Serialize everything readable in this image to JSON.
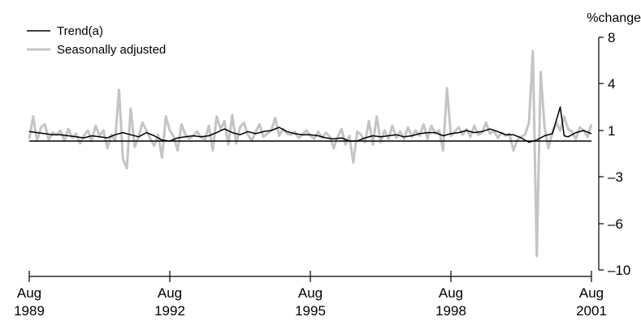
{
  "chart_data": {
    "type": "line",
    "title": "",
    "xlabel": "",
    "ylabel": "%change",
    "x_range": [
      "1989-08",
      "2001-08"
    ],
    "y_ticks": [
      8,
      4,
      1,
      -3,
      -6,
      -10
    ],
    "y_tick_labels": [
      "8",
      "4",
      "1",
      "–3",
      "–6",
      "–10"
    ],
    "y_axis_position": "right",
    "x_ticks": [
      {
        "x": "1989-08",
        "month": "Aug",
        "year": "1989"
      },
      {
        "x": "1992-08",
        "month": "Aug",
        "year": "1992"
      },
      {
        "x": "1995-08",
        "month": "Aug",
        "year": "1995"
      },
      {
        "x": "1998-08",
        "month": "Aug",
        "year": "1998"
      },
      {
        "x": "2001-08",
        "month": "Aug",
        "year": "2001"
      }
    ],
    "reference_line": 0,
    "grid": false,
    "legend_position": "top-left",
    "series": [
      {
        "name": "Trend(a)",
        "color": "#000000",
        "points": [
          [
            "1989-08",
            0.9
          ],
          [
            "1989-10",
            0.8
          ],
          [
            "1989-12",
            0.7
          ],
          [
            "1990-02",
            0.6
          ],
          [
            "1990-04",
            0.6
          ],
          [
            "1990-06",
            0.5
          ],
          [
            "1990-08",
            0.4
          ],
          [
            "1990-10",
            0.3
          ],
          [
            "1990-12",
            0.5
          ],
          [
            "1991-02",
            0.4
          ],
          [
            "1991-04",
            0.3
          ],
          [
            "1991-06",
            0.6
          ],
          [
            "1991-08",
            0.8
          ],
          [
            "1991-10",
            0.6
          ],
          [
            "1991-12",
            0.4
          ],
          [
            "1992-02",
            0.8
          ],
          [
            "1992-04",
            0.5
          ],
          [
            "1992-06",
            0.1
          ],
          [
            "1992-08",
            0.0
          ],
          [
            "1992-10",
            0.3
          ],
          [
            "1992-12",
            0.4
          ],
          [
            "1993-02",
            0.5
          ],
          [
            "1993-04",
            0.4
          ],
          [
            "1993-06",
            0.5
          ],
          [
            "1993-08",
            0.8
          ],
          [
            "1993-10",
            1.1
          ],
          [
            "1993-12",
            0.8
          ],
          [
            "1994-02",
            0.6
          ],
          [
            "1994-04",
            0.9
          ],
          [
            "1994-06",
            0.7
          ],
          [
            "1994-08",
            0.9
          ],
          [
            "1994-10",
            1.0
          ],
          [
            "1994-12",
            1.2
          ],
          [
            "1995-02",
            0.9
          ],
          [
            "1995-04",
            0.7
          ],
          [
            "1995-06",
            0.6
          ],
          [
            "1995-08",
            0.6
          ],
          [
            "1995-10",
            0.5
          ],
          [
            "1995-12",
            0.3
          ],
          [
            "1996-02",
            0.2
          ],
          [
            "1996-04",
            0.3
          ],
          [
            "1996-06",
            0.0
          ],
          [
            "1996-08",
            0.0
          ],
          [
            "1996-10",
            0.3
          ],
          [
            "1996-12",
            0.5
          ],
          [
            "1997-02",
            0.4
          ],
          [
            "1997-04",
            0.5
          ],
          [
            "1997-06",
            0.6
          ],
          [
            "1997-08",
            0.4
          ],
          [
            "1997-10",
            0.5
          ],
          [
            "1997-12",
            0.7
          ],
          [
            "1998-02",
            0.8
          ],
          [
            "1998-04",
            0.8
          ],
          [
            "1998-06",
            0.5
          ],
          [
            "1998-08",
            0.7
          ],
          [
            "1998-10",
            0.8
          ],
          [
            "1998-12",
            1.0
          ],
          [
            "1999-02",
            0.8
          ],
          [
            "1999-04",
            0.9
          ],
          [
            "1999-06",
            1.1
          ],
          [
            "1999-08",
            0.9
          ],
          [
            "1999-10",
            0.6
          ],
          [
            "1999-12",
            0.6
          ],
          [
            "2000-02",
            0.3
          ],
          [
            "2000-04",
            -0.1
          ],
          [
            "2000-06",
            0.1
          ],
          [
            "2000-08",
            0.5
          ],
          [
            "2000-10",
            0.7
          ],
          [
            "2000-12",
            2.5
          ],
          [
            "2001-01",
            0.5
          ],
          [
            "2001-02",
            0.4
          ],
          [
            "2001-04",
            0.8
          ],
          [
            "2001-06",
            1.0
          ],
          [
            "2001-08",
            0.7
          ]
        ]
      },
      {
        "name": "Seasonally adjusted",
        "color": "#c4c4c4",
        "points": [
          [
            "1989-08",
            0.2
          ],
          [
            "1989-09",
            1.9
          ],
          [
            "1989-10",
            0.0
          ],
          [
            "1989-11",
            1.2
          ],
          [
            "1989-12",
            1.4
          ],
          [
            "1990-01",
            0.1
          ],
          [
            "1990-02",
            0.8
          ],
          [
            "1990-03",
            0.6
          ],
          [
            "1990-04",
            1.0
          ],
          [
            "1990-05",
            0.0
          ],
          [
            "1990-06",
            1.1
          ],
          [
            "1990-07",
            0.3
          ],
          [
            "1990-08",
            0.7
          ],
          [
            "1990-09",
            -0.2
          ],
          [
            "1990-10",
            0.5
          ],
          [
            "1990-11",
            1.0
          ],
          [
            "1990-12",
            0.0
          ],
          [
            "1991-01",
            1.3
          ],
          [
            "1991-02",
            0.5
          ],
          [
            "1991-03",
            1.0
          ],
          [
            "1991-04",
            -0.6
          ],
          [
            "1991-05",
            0.6
          ],
          [
            "1991-06",
            0.0
          ],
          [
            "1991-07",
            3.6
          ],
          [
            "1991-08",
            -1.5
          ],
          [
            "1991-09",
            -2.3
          ],
          [
            "1991-10",
            2.4
          ],
          [
            "1991-11",
            -0.5
          ],
          [
            "1991-12",
            0.4
          ],
          [
            "1992-01",
            1.5
          ],
          [
            "1992-02",
            1.0
          ],
          [
            "1992-03",
            0.2
          ],
          [
            "1992-04",
            -0.4
          ],
          [
            "1992-05",
            0.6
          ],
          [
            "1992-06",
            -1.4
          ],
          [
            "1992-07",
            1.9
          ],
          [
            "1992-08",
            1.0
          ],
          [
            "1992-09",
            0.4
          ],
          [
            "1992-10",
            -0.8
          ],
          [
            "1992-11",
            1.4
          ],
          [
            "1992-12",
            0.6
          ],
          [
            "1993-01",
            0.2
          ],
          [
            "1993-02",
            0.5
          ],
          [
            "1993-03",
            0.9
          ],
          [
            "1993-04",
            0.4
          ],
          [
            "1993-05",
            0.1
          ],
          [
            "1993-06",
            1.3
          ],
          [
            "1993-07",
            -0.8
          ],
          [
            "1993-08",
            1.9
          ],
          [
            "1993-09",
            1.1
          ],
          [
            "1993-10",
            1.6
          ],
          [
            "1993-11",
            -0.3
          ],
          [
            "1993-12",
            2.0
          ],
          [
            "1994-01",
            -0.2
          ],
          [
            "1994-02",
            1.2
          ],
          [
            "1994-03",
            1.5
          ],
          [
            "1994-04",
            0.6
          ],
          [
            "1994-05",
            0.0
          ],
          [
            "1994-06",
            0.9
          ],
          [
            "1994-07",
            1.4
          ],
          [
            "1994-08",
            0.4
          ],
          [
            "1994-09",
            0.7
          ],
          [
            "1994-10",
            1.0
          ],
          [
            "1994-11",
            1.8
          ],
          [
            "1994-12",
            0.5
          ],
          [
            "1995-01",
            1.1
          ],
          [
            "1995-02",
            0.7
          ],
          [
            "1995-03",
            0.6
          ],
          [
            "1995-04",
            0.9
          ],
          [
            "1995-05",
            0.3
          ],
          [
            "1995-06",
            0.6
          ],
          [
            "1995-07",
            1.0
          ],
          [
            "1995-08",
            0.5
          ],
          [
            "1995-09",
            0.2
          ],
          [
            "1995-10",
            0.9
          ],
          [
            "1995-11",
            0.3
          ],
          [
            "1995-12",
            0.8
          ],
          [
            "1996-01",
            0.4
          ],
          [
            "1996-02",
            -0.6
          ],
          [
            "1996-03",
            0.4
          ],
          [
            "1996-04",
            1.1
          ],
          [
            "1996-05",
            -0.3
          ],
          [
            "1996-06",
            0.5
          ],
          [
            "1996-07",
            -1.8
          ],
          [
            "1996-08",
            0.9
          ],
          [
            "1996-09",
            0.6
          ],
          [
            "1996-10",
            -0.1
          ],
          [
            "1996-11",
            1.6
          ],
          [
            "1996-12",
            -0.3
          ],
          [
            "1997-01",
            1.9
          ],
          [
            "1997-02",
            -0.1
          ],
          [
            "1997-03",
            1.0
          ],
          [
            "1997-04",
            0.2
          ],
          [
            "1997-05",
            1.3
          ],
          [
            "1997-06",
            0.3
          ],
          [
            "1997-07",
            0.9
          ],
          [
            "1997-08",
            0.2
          ],
          [
            "1997-09",
            1.2
          ],
          [
            "1997-10",
            0.4
          ],
          [
            "1997-11",
            1.0
          ],
          [
            "1997-12",
            0.5
          ],
          [
            "1998-01",
            1.4
          ],
          [
            "1998-02",
            0.2
          ],
          [
            "1998-03",
            1.3
          ],
          [
            "1998-04",
            0.7
          ],
          [
            "1998-05",
            1.0
          ],
          [
            "1998-06",
            -0.8
          ],
          [
            "1998-07",
            3.7
          ],
          [
            "1998-08",
            0.5
          ],
          [
            "1998-09",
            0.9
          ],
          [
            "1998-10",
            1.2
          ],
          [
            "1998-11",
            0.6
          ],
          [
            "1998-12",
            1.1
          ],
          [
            "1999-01",
            0.4
          ],
          [
            "1999-02",
            1.3
          ],
          [
            "1999-03",
            0.6
          ],
          [
            "1999-04",
            0.8
          ],
          [
            "1999-05",
            1.5
          ],
          [
            "1999-06",
            0.7
          ],
          [
            "1999-07",
            1.0
          ],
          [
            "1999-08",
            0.3
          ],
          [
            "1999-09",
            0.8
          ],
          [
            "1999-10",
            0.5
          ],
          [
            "1999-11",
            0.7
          ],
          [
            "1999-12",
            -0.8
          ],
          [
            "2000-01",
            0.1
          ],
          [
            "2000-02",
            0.4
          ],
          [
            "2000-03",
            0.6
          ],
          [
            "2000-04",
            1.5
          ],
          [
            "2000-05",
            6.8
          ],
          [
            "2000-06",
            -8.8
          ],
          [
            "2000-07",
            5.0
          ],
          [
            "2000-08",
            1.2
          ],
          [
            "2000-09",
            -0.6
          ],
          [
            "2000-10",
            0.8
          ],
          [
            "2000-11",
            1.5
          ],
          [
            "2000-12",
            1.0
          ],
          [
            "2001-01",
            1.9
          ],
          [
            "2001-02",
            1.1
          ],
          [
            "2001-03",
            0.9
          ],
          [
            "2001-04",
            0.2
          ],
          [
            "2001-05",
            1.2
          ],
          [
            "2001-06",
            1.0
          ],
          [
            "2001-07",
            0.4
          ],
          [
            "2001-08",
            1.4
          ]
        ]
      }
    ]
  }
}
